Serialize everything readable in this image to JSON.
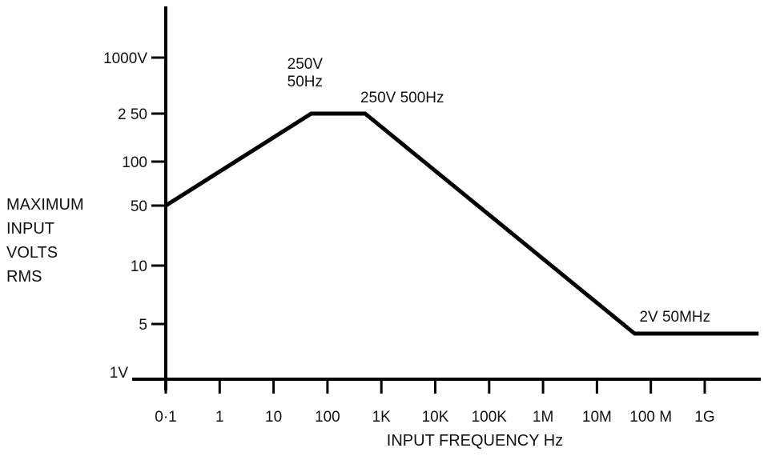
{
  "chart_data": {
    "type": "line",
    "x_scale": "log",
    "y_scale": "log",
    "xlabel": "INPUT FREQUENCY Hz",
    "ylabel_lines": [
      "MAXIMUM",
      "INPUT",
      "VOLTS",
      "RMS"
    ],
    "xlim": [
      0.1,
      10000000000
    ],
    "ylim": [
      1,
      1000
    ],
    "x_ticks": [
      {
        "value": 0.1,
        "label": "0·1"
      },
      {
        "value": 1,
        "label": "1"
      },
      {
        "value": 10,
        "label": "10"
      },
      {
        "value": 100,
        "label": "100"
      },
      {
        "value": 1000,
        "label": "1K"
      },
      {
        "value": 10000,
        "label": "10K"
      },
      {
        "value": 100000,
        "label": "100K"
      },
      {
        "value": 1000000,
        "label": "1M"
      },
      {
        "value": 10000000,
        "label": "10M"
      },
      {
        "value": 100000000,
        "label": "100 M"
      },
      {
        "value": 1000000000,
        "label": "1G"
      }
    ],
    "y_ticks": [
      {
        "value": 1,
        "label": "1V"
      },
      {
        "value": 5,
        "label": "5"
      },
      {
        "value": 10,
        "label": "10"
      },
      {
        "value": 50,
        "label": "50"
      },
      {
        "value": 100,
        "label": "100"
      },
      {
        "value": 250,
        "label": "2 50"
      },
      {
        "value": 1000,
        "label": "1000V"
      }
    ],
    "series": [
      {
        "points": [
          {
            "x": 0.1,
            "y": 50
          },
          {
            "x": 50,
            "y": 250
          },
          {
            "x": 500,
            "y": 250
          },
          {
            "x": 50000000,
            "y": 2
          },
          {
            "x": 10000000000,
            "y": 2
          }
        ]
      }
    ],
    "annotations": [
      {
        "lines": [
          "250V",
          "50Hz"
        ],
        "x": 50,
        "y": 250
      },
      {
        "lines": [
          "250V  500Hz"
        ],
        "x": 500,
        "y": 250
      },
      {
        "lines": [
          "2V 50MHz"
        ],
        "x": 50000000,
        "y": 2
      }
    ],
    "grid": false,
    "line_color": "#000000"
  }
}
